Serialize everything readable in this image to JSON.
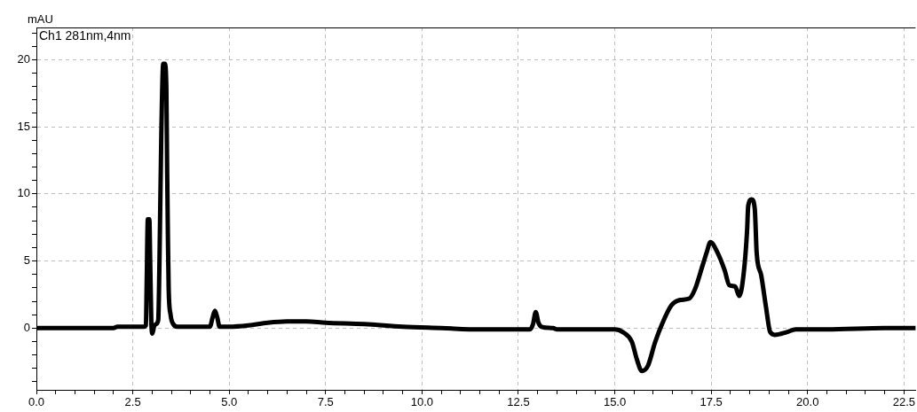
{
  "chart_data": {
    "type": "line",
    "ylabel": "mAU",
    "annotations": [
      "Ch1 281nm,4nm"
    ],
    "x": [
      0,
      1,
      2,
      2.1,
      2.78,
      2.84,
      2.86,
      2.89,
      2.93,
      2.95,
      2.98,
      3.01,
      3.05,
      3.1,
      3.16,
      3.19,
      3.24,
      3.29,
      3.33,
      3.37,
      3.39,
      3.41,
      3.43,
      3.48,
      3.55,
      3.66,
      4.5,
      4.57,
      4.63,
      4.69,
      4.75,
      5,
      5.5,
      6,
      6.5,
      7,
      7.5,
      8.5,
      9.5,
      10.5,
      11.5,
      12.5,
      12.8,
      12.88,
      12.95,
      13.02,
      13.1,
      13.4,
      13.5,
      15,
      15.21,
      15.44,
      15.58,
      15.7,
      15.86,
      16.04,
      16.24,
      16.47,
      16.7,
      16.93,
      17.08,
      17.28,
      17.39,
      17.48,
      17.65,
      17.85,
      17.97,
      18.12,
      18.23,
      18.34,
      18.43,
      18.46,
      18.55,
      18.63,
      18.68,
      18.8,
      18.92,
      19.03,
      19.15,
      19.46,
      19.69,
      20.5,
      22,
      22.8
    ],
    "values": [
      0,
      0,
      0,
      0.1,
      0.1,
      0.2,
      3.3,
      8.1,
      8.1,
      5.2,
      0.5,
      -0.4,
      0.1,
      0.3,
      0.6,
      4.6,
      14.5,
      19.7,
      19.7,
      18,
      12,
      7,
      3,
      1,
      0.3,
      0.1,
      0.1,
      0.8,
      1.3,
      0.8,
      0.1,
      0.1,
      0.2,
      0.4,
      0.5,
      0.5,
      0.4,
      0.3,
      0.1,
      0,
      -0.1,
      -0.1,
      -0.1,
      0.3,
      1.2,
      0.4,
      0.1,
      0,
      -0.1,
      -0.1,
      -0.3,
      -1,
      -2.4,
      -3.2,
      -2.8,
      -1.1,
      0.4,
      1.7,
      2.1,
      2.2,
      2.9,
      4.7,
      5.7,
      6.4,
      5.7,
      4.3,
      3.2,
      3.1,
      2.4,
      4,
      7.2,
      9.1,
      9.6,
      8.9,
      5.6,
      3.9,
      1.6,
      -0.3,
      -0.5,
      -0.3,
      -0.1,
      -0.1,
      0,
      0
    ],
    "color": "#000000",
    "marker": "none",
    "grid": true,
    "xlim": [
      0,
      22.8
    ],
    "ylim": [
      -4.6,
      22.4
    ],
    "xticks": [
      {
        "value": 0,
        "label": "0.0"
      },
      {
        "value": 0.5,
        "label": null
      },
      {
        "value": 1,
        "label": null
      },
      {
        "value": 1.5,
        "label": null
      },
      {
        "value": 2,
        "label": null
      },
      2.5,
      {
        "value": 3,
        "label": null
      },
      {
        "value": 3.5,
        "label": null
      },
      {
        "value": 4,
        "label": null
      },
      {
        "value": 4.5,
        "label": null
      },
      {
        "value": 5,
        "label": "5.0"
      },
      {
        "value": 5.5,
        "label": null
      },
      {
        "value": 6,
        "label": null
      },
      {
        "value": 6.5,
        "label": null
      },
      {
        "value": 7,
        "label": null
      },
      7.5,
      {
        "value": 8,
        "label": null
      },
      {
        "value": 8.5,
        "label": null
      },
      {
        "value": 9,
        "label": null
      },
      {
        "value": 9.5,
        "label": null
      },
      {
        "value": 10,
        "label": "10.0"
      },
      {
        "value": 10.5,
        "label": null
      },
      {
        "value": 11,
        "label": null
      },
      {
        "value": 11.5,
        "label": null
      },
      {
        "value": 12,
        "label": null
      },
      12.5,
      {
        "value": 13,
        "label": null
      },
      {
        "value": 13.5,
        "label": null
      },
      {
        "value": 14,
        "label": null
      },
      {
        "value": 14.5,
        "label": null
      },
      {
        "value": 15,
        "label": "15.0"
      },
      {
        "value": 15.5,
        "label": null
      },
      {
        "value": 16,
        "label": null
      },
      {
        "value": 16.5,
        "label": null
      },
      {
        "value": 17,
        "label": null
      },
      17.5,
      {
        "value": 18,
        "label": null
      },
      {
        "value": 18.5,
        "label": null
      },
      {
        "value": 19,
        "label": null
      },
      {
        "value": 19.5,
        "label": null
      },
      {
        "value": 20,
        "label": "20.0"
      },
      {
        "value": 20.5,
        "label": null
      },
      {
        "value": 21,
        "label": null
      },
      {
        "value": 21.5,
        "label": null
      },
      {
        "value": 22,
        "label": null
      },
      22.5
    ],
    "yticks": [
      {
        "value": -4,
        "label": null
      },
      {
        "value": -3,
        "label": null
      },
      {
        "value": -2,
        "label": null
      },
      {
        "value": -1,
        "label": null
      },
      0,
      {
        "value": 1,
        "label": null
      },
      {
        "value": 2,
        "label": null
      },
      {
        "value": 3,
        "label": null
      },
      {
        "value": 4,
        "label": null
      },
      5,
      {
        "value": 6,
        "label": null
      },
      {
        "value": 7,
        "label": null
      },
      {
        "value": 8,
        "label": null
      },
      {
        "value": 9,
        "label": null
      },
      10,
      {
        "value": 11,
        "label": null
      },
      {
        "value": 12,
        "label": null
      },
      {
        "value": 13,
        "label": null
      },
      {
        "value": 14,
        "label": null
      },
      15,
      {
        "value": 16,
        "label": null
      },
      {
        "value": 17,
        "label": null
      },
      {
        "value": 18,
        "label": null
      },
      {
        "value": 19,
        "label": null
      },
      20,
      {
        "value": 21,
        "label": null
      },
      {
        "value": 22,
        "label": null
      }
    ]
  }
}
